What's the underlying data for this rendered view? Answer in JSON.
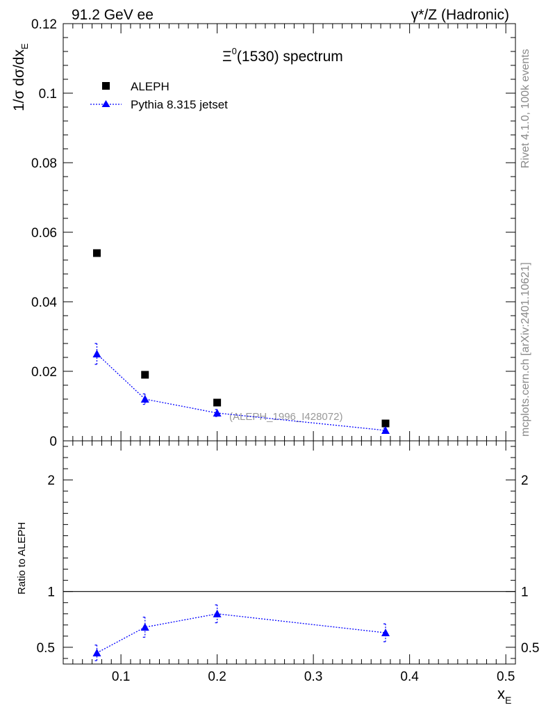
{
  "header": {
    "left": "91.2 GeV ee",
    "right": "γ*/Z (Hadronic)"
  },
  "side_labels": {
    "top": "Rivet 4.1.0,  100k events",
    "bottom": "mcplots.cern.ch [arXiv:2401.10621]"
  },
  "chart_data": [
    {
      "type": "scatter",
      "panel": "main",
      "title": "Ξ⁰(1530) spectrum",
      "title_parts": {
        "base": "Ξ",
        "sup": "0",
        "rest": "(1530) spectrum"
      },
      "ylabel": "1/σ  dσ/dx_E",
      "ylabel_parts": {
        "prefix": "1/σ   dσ/dx",
        "sub": "E"
      },
      "xlim": [
        0.04,
        0.51
      ],
      "ylim": [
        0,
        0.12
      ],
      "yticks": [
        0,
        0.02,
        0.04,
        0.06,
        0.08,
        0.1,
        0.12
      ],
      "ytick_labels": [
        "0",
        "0.02",
        "0.04",
        "0.06",
        "0.08",
        "0.1",
        "0.12"
      ],
      "annotation": "(ALEPH_1996_I428072)",
      "legend_position": "top-left",
      "series": [
        {
          "name": "ALEPH",
          "marker": "square",
          "color": "#000000",
          "x": [
            0.075,
            0.125,
            0.2,
            0.375
          ],
          "y": [
            0.054,
            0.019,
            0.011,
            0.005
          ]
        },
        {
          "name": "Pythia 8.315 jetset",
          "marker": "triangle",
          "line": "dotted",
          "color": "#0000ff",
          "x": [
            0.075,
            0.125,
            0.2,
            0.375
          ],
          "y": [
            0.025,
            0.012,
            0.008,
            0.003
          ],
          "yerr": [
            0.003,
            0.0015,
            0.001,
            0.0006
          ]
        }
      ]
    },
    {
      "type": "line",
      "panel": "ratio",
      "ylabel": "Ratio to ALEPH",
      "xlabel": "x_E",
      "xlabel_parts": {
        "base": "x",
        "sub": "E"
      },
      "xlim": [
        0.04,
        0.51
      ],
      "ylim": [
        0.35,
        2.35
      ],
      "yticks": [
        0.5,
        1,
        2
      ],
      "ytick_labels": [
        "0.5",
        "1",
        "2"
      ],
      "xticks": [
        0.1,
        0.2,
        0.3,
        0.4,
        0.5
      ],
      "xtick_labels": [
        "0.1",
        "0.2",
        "0.3",
        "0.4",
        "0.5"
      ],
      "reference_line": 1,
      "series": [
        {
          "name": "Pythia 8.315 jetset",
          "marker": "triangle",
          "line": "dotted",
          "color": "#0000ff",
          "x": [
            0.075,
            0.125,
            0.2,
            0.375
          ],
          "y": [
            0.45,
            0.68,
            0.8,
            0.63
          ],
          "yerr": [
            0.07,
            0.09,
            0.08,
            0.08
          ]
        }
      ]
    }
  ]
}
